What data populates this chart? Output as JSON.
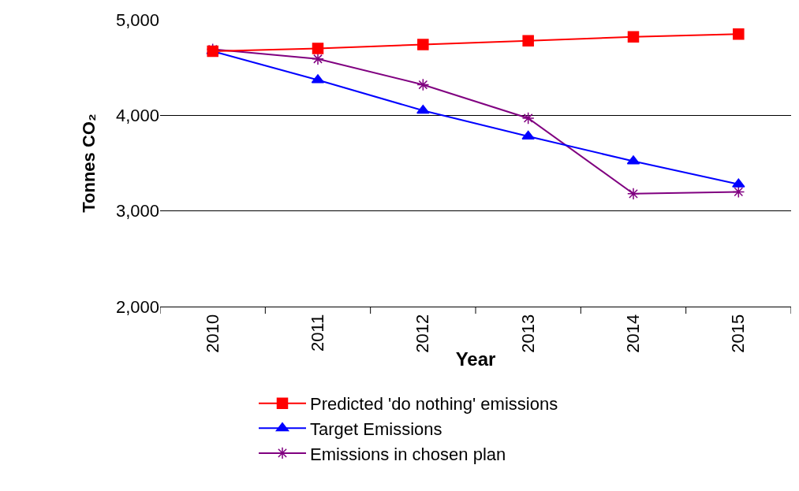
{
  "chart_data": {
    "type": "line",
    "xlabel": "Year",
    "ylabel": "Tonnes CO₂",
    "categories": [
      "2010",
      "2011",
      "2012",
      "2013",
      "2014",
      "2015"
    ],
    "series": [
      {
        "name": "Predicted 'do nothing' emissions",
        "color": "#ff0000",
        "marker": "square",
        "values": [
          4670,
          4700,
          4740,
          4780,
          4820,
          4850
        ]
      },
      {
        "name": "Target Emissions",
        "color": "#0000ff",
        "marker": "triangle",
        "values": [
          4670,
          4370,
          4050,
          3780,
          3520,
          3280
        ]
      },
      {
        "name": "Emissions in chosen plan",
        "color": "#800080",
        "marker": "cross",
        "values": [
          4690,
          4590,
          4320,
          3970,
          3180,
          3200
        ]
      }
    ],
    "ylim": [
      2000,
      5000
    ],
    "yticks": [
      {
        "value": 2000,
        "label": "2,000"
      },
      {
        "value": 3000,
        "label": "3,000"
      },
      {
        "value": 4000,
        "label": "4,000"
      },
      {
        "value": 5000,
        "label": "5,000"
      }
    ],
    "grid": "y",
    "legend": "bottom",
    "line_style": "solid"
  }
}
